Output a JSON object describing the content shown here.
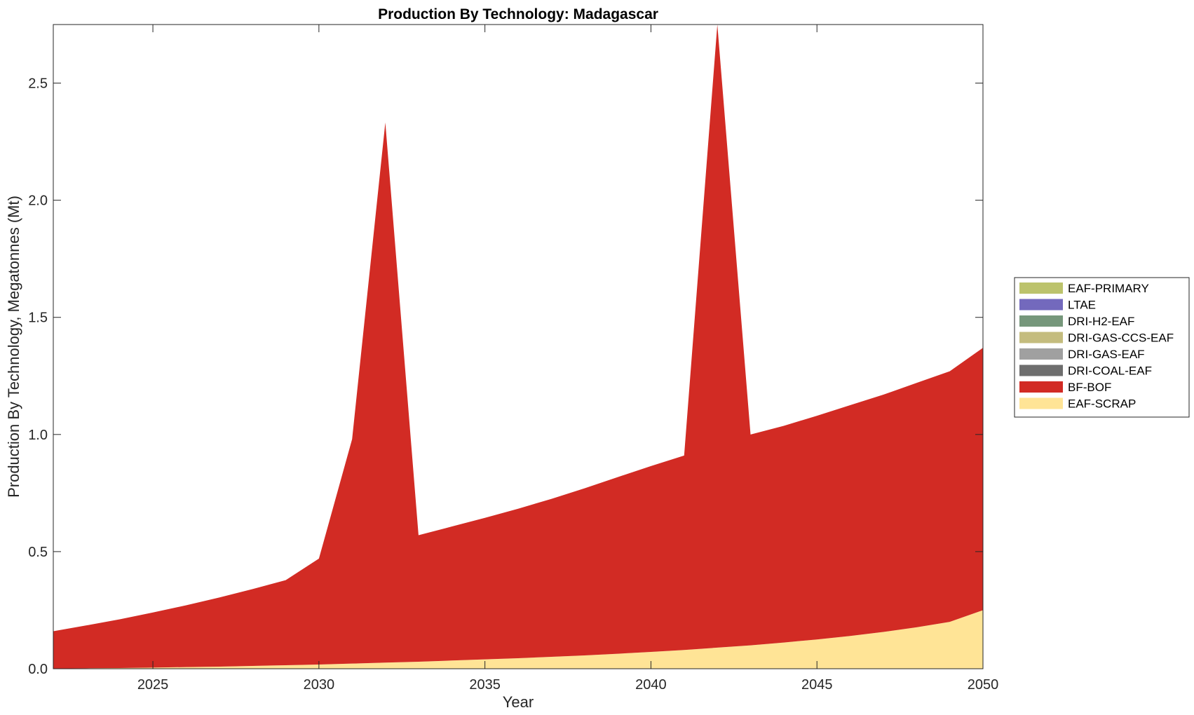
{
  "chart_data": {
    "type": "area",
    "stacked": true,
    "title": "Production By Technology: Madagascar",
    "xlabel": "Year",
    "ylabel": "Production By Technology, Megatonnes (Mt)",
    "xlim": [
      2022,
      2050
    ],
    "ylim": [
      0,
      2.75
    ],
    "xticks": [
      2025,
      2030,
      2035,
      2040,
      2045,
      2050
    ],
    "yticks": [
      0.0,
      0.5,
      1.0,
      1.5,
      2.0,
      2.5
    ],
    "ytick_labels": [
      "0.0",
      "0.5",
      "1.0",
      "1.5",
      "2.0",
      "2.5"
    ],
    "grid": false,
    "legend_position": "outside-right",
    "x": [
      2022,
      2023,
      2024,
      2025,
      2026,
      2027,
      2028,
      2029,
      2030,
      2031,
      2032,
      2033,
      2034,
      2035,
      2036,
      2037,
      2038,
      2039,
      2040,
      2041,
      2042,
      2043,
      2044,
      2045,
      2046,
      2047,
      2048,
      2049,
      2050
    ],
    "series": [
      {
        "name": "EAF-SCRAP",
        "color": "#FFE496",
        "values": [
          0.001,
          0.002,
          0.003,
          0.005,
          0.007,
          0.009,
          0.012,
          0.015,
          0.018,
          0.022,
          0.026,
          0.03,
          0.035,
          0.04,
          0.045,
          0.051,
          0.057,
          0.064,
          0.072,
          0.08,
          0.09,
          0.1,
          0.112,
          0.125,
          0.14,
          0.157,
          0.177,
          0.2,
          0.25
        ]
      },
      {
        "name": "BF-BOF",
        "color": "#D22B24",
        "values": [
          0.159,
          0.183,
          0.208,
          0.235,
          0.264,
          0.295,
          0.328,
          0.363,
          0.452,
          0.958,
          2.306,
          0.54,
          0.572,
          0.604,
          0.638,
          0.674,
          0.713,
          0.754,
          0.793,
          0.83,
          2.66,
          0.9,
          0.925,
          0.955,
          0.985,
          1.013,
          1.043,
          1.07,
          1.12
        ]
      },
      {
        "name": "DRI-COAL-EAF",
        "color": "#6E6E6E",
        "values": [
          0,
          0,
          0,
          0,
          0,
          0,
          0,
          0,
          0,
          0,
          0,
          0,
          0,
          0,
          0,
          0,
          0,
          0,
          0,
          0,
          0,
          0,
          0,
          0,
          0,
          0,
          0,
          0,
          0
        ]
      },
      {
        "name": "DRI-GAS-EAF",
        "color": "#A0A0A0",
        "values": [
          0,
          0,
          0,
          0,
          0,
          0,
          0,
          0,
          0,
          0,
          0,
          0,
          0,
          0,
          0,
          0,
          0,
          0,
          0,
          0,
          0,
          0,
          0,
          0,
          0,
          0,
          0,
          0,
          0
        ]
      },
      {
        "name": "DRI-GAS-CCS-EAF",
        "color": "#C4BC7E",
        "values": [
          0,
          0,
          0,
          0,
          0,
          0,
          0,
          0,
          0,
          0,
          0,
          0,
          0,
          0,
          0,
          0,
          0,
          0,
          0,
          0,
          0,
          0,
          0,
          0,
          0,
          0,
          0,
          0,
          0
        ]
      },
      {
        "name": "DRI-H2-EAF",
        "color": "#76977B",
        "values": [
          0,
          0,
          0,
          0,
          0,
          0,
          0,
          0,
          0,
          0,
          0,
          0,
          0,
          0,
          0,
          0,
          0,
          0,
          0,
          0,
          0,
          0,
          0,
          0,
          0,
          0,
          0,
          0,
          0
        ]
      },
      {
        "name": "LTAE",
        "color": "#7369BD",
        "values": [
          0,
          0,
          0,
          0,
          0,
          0,
          0,
          0,
          0,
          0,
          0,
          0,
          0,
          0,
          0,
          0,
          0,
          0,
          0,
          0,
          0,
          0,
          0,
          0,
          0,
          0,
          0,
          0,
          0
        ]
      },
      {
        "name": "EAF-PRIMARY",
        "color": "#BCC36C",
        "values": [
          0,
          0,
          0,
          0,
          0,
          0,
          0,
          0,
          0,
          0,
          0,
          0,
          0,
          0,
          0,
          0,
          0,
          0,
          0,
          0,
          0,
          0,
          0,
          0,
          0,
          0,
          0,
          0,
          0
        ]
      }
    ],
    "legend_order": [
      "EAF-PRIMARY",
      "LTAE",
      "DRI-H2-EAF",
      "DRI-GAS-CCS-EAF",
      "DRI-GAS-EAF",
      "DRI-COAL-EAF",
      "BF-BOF",
      "EAF-SCRAP"
    ]
  }
}
